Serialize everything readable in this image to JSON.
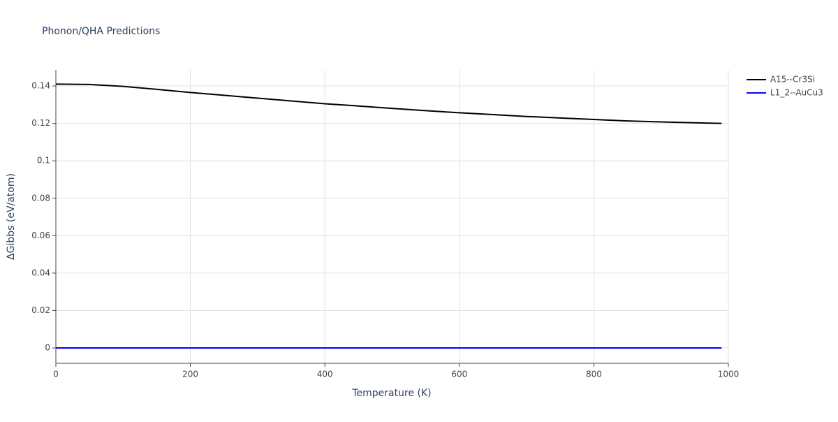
{
  "chart_data": {
    "type": "line",
    "title": "Phonon/QHA Predictions",
    "x_label": "Temperature (K)",
    "y_label": "ΔGibbs (eV/atom)",
    "x": [
      0,
      50,
      100,
      150,
      200,
      250,
      300,
      350,
      400,
      450,
      500,
      550,
      600,
      650,
      700,
      750,
      800,
      850,
      900,
      950,
      990
    ],
    "series": [
      {
        "name": "A15--Cr3Si",
        "color": "#000000",
        "values": [
          0.141,
          0.1408,
          0.1398,
          0.1382,
          0.1365,
          0.135,
          0.1335,
          0.132,
          0.1305,
          0.1293,
          0.128,
          0.1268,
          0.1257,
          0.1247,
          0.1237,
          0.1229,
          0.1221,
          0.1213,
          0.1208,
          0.1203,
          0.12
        ]
      },
      {
        "name": "L1_2--AuCu3",
        "color": "#0000ff",
        "values": [
          0,
          0,
          0,
          0,
          0,
          0,
          0,
          0,
          0,
          0,
          0,
          0,
          0,
          0,
          0,
          0,
          0,
          0,
          0,
          0,
          0
        ]
      }
    ],
    "xlim": [
      0,
      1000
    ],
    "xticks": [
      0,
      200,
      400,
      600,
      800,
      1000
    ],
    "ylim": [
      -0.0082,
      0.1486
    ],
    "yticks": [
      0,
      0.02,
      0.04,
      0.06,
      0.08,
      0.1,
      0.12,
      0.14
    ],
    "grid": true,
    "legend": "right"
  }
}
